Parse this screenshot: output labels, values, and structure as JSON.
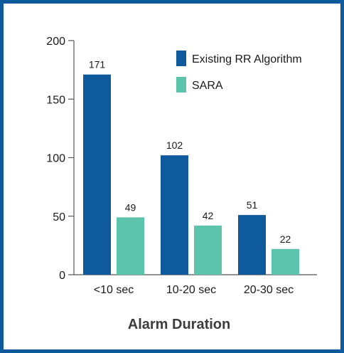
{
  "chart_data": {
    "type": "bar",
    "categories": [
      "<10 sec",
      "10-20 sec",
      "20-30 sec"
    ],
    "series": [
      {
        "name": "Existing RR Algorithm",
        "values": [
          171,
          102,
          51
        ],
        "color": "#0e5a9c"
      },
      {
        "name": "SARA",
        "values": [
          49,
          42,
          22
        ],
        "color": "#5cc4aa"
      }
    ],
    "xlabel": "Alarm Duration",
    "ylim": [
      0,
      200
    ],
    "yticks": [
      0,
      50,
      100,
      150,
      200
    ],
    "grid": false,
    "legend_position": "top-right"
  },
  "colors": {
    "border": "#0e5a9c",
    "axis": "#555555",
    "text": "#1a1a1a"
  }
}
